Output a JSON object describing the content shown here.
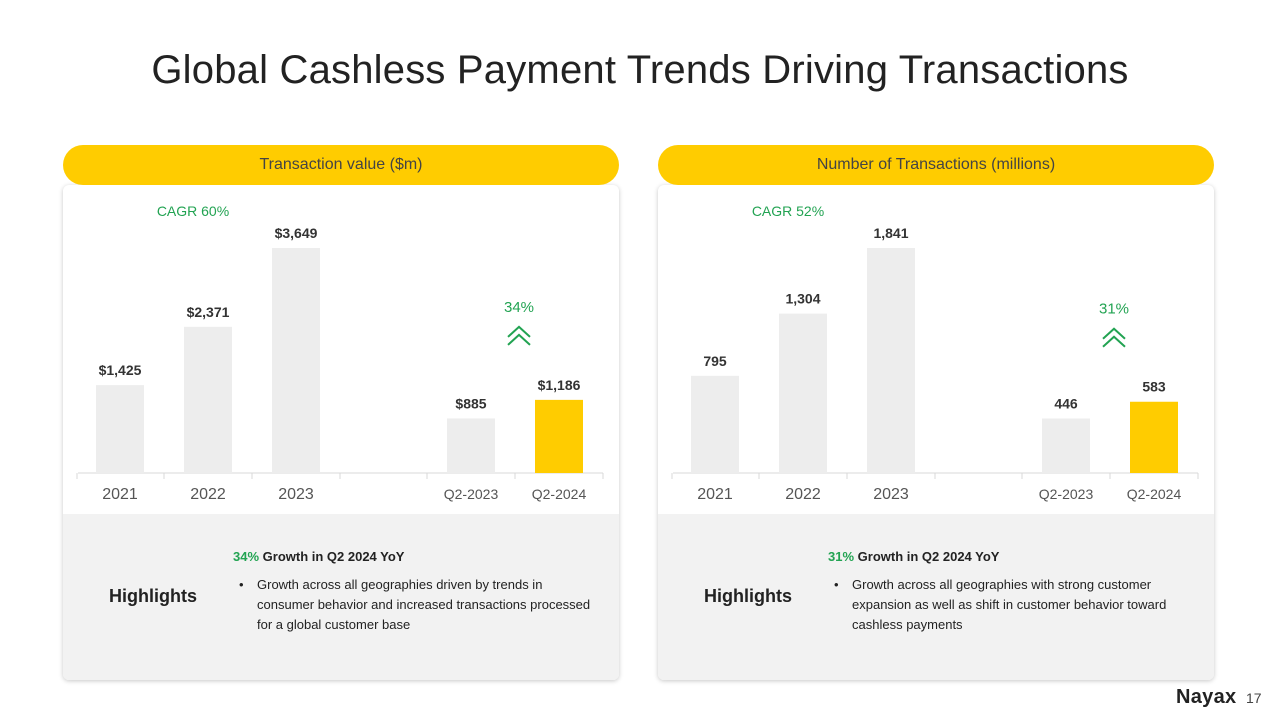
{
  "title": "Global Cashless Payment Trends Driving Transactions",
  "colors": {
    "accent": "#FFCC00",
    "green": "#22A352",
    "bar_gray": "#EDEDED"
  },
  "panels": [
    {
      "header": "Transaction value ($m)",
      "highlights": {
        "label": "Highlights",
        "headline_pct": "34%",
        "headline_text": " Growth in Q2 2024 YoY",
        "bullets": [
          "Growth across all geographies driven by trends in consumer behavior and increased transactions processed for a global customer base"
        ]
      }
    },
    {
      "header": "Number of Transactions (millions)",
      "highlights": {
        "label": "Highlights",
        "headline_pct": "31%",
        "headline_text": " Growth in Q2 2024 YoY",
        "bullets": [
          "Growth across all geographies with strong customer expansion as well as shift in customer behavior toward cashless payments"
        ]
      }
    }
  ],
  "chart_data": [
    {
      "type": "bar",
      "title": "Transaction value ($m)",
      "categories": [
        "2021",
        "2022",
        "2023",
        "Q2-2023",
        "Q2-2024"
      ],
      "values": [
        1425,
        2371,
        3649,
        885,
        1186
      ],
      "labels": [
        "$1,425",
        "$2,371",
        "$3,649",
        "$885",
        "$1,186"
      ],
      "highlight_index": 4,
      "ylim": [
        0,
        3649
      ],
      "annotations": {
        "cagr": "CAGR 60%",
        "growth": "34%"
      }
    },
    {
      "type": "bar",
      "title": "Number of Transactions (millions)",
      "categories": [
        "2021",
        "2022",
        "2023",
        "Q2-2023",
        "Q2-2024"
      ],
      "values": [
        795,
        1304,
        1841,
        446,
        583
      ],
      "labels": [
        "795",
        "1,304",
        "1,841",
        "446",
        "583"
      ],
      "highlight_index": 4,
      "ylim": [
        0,
        1841
      ],
      "annotations": {
        "cagr": "CAGR 52%",
        "growth": "31%"
      }
    }
  ],
  "logo": "Nayax",
  "page_number": "17"
}
